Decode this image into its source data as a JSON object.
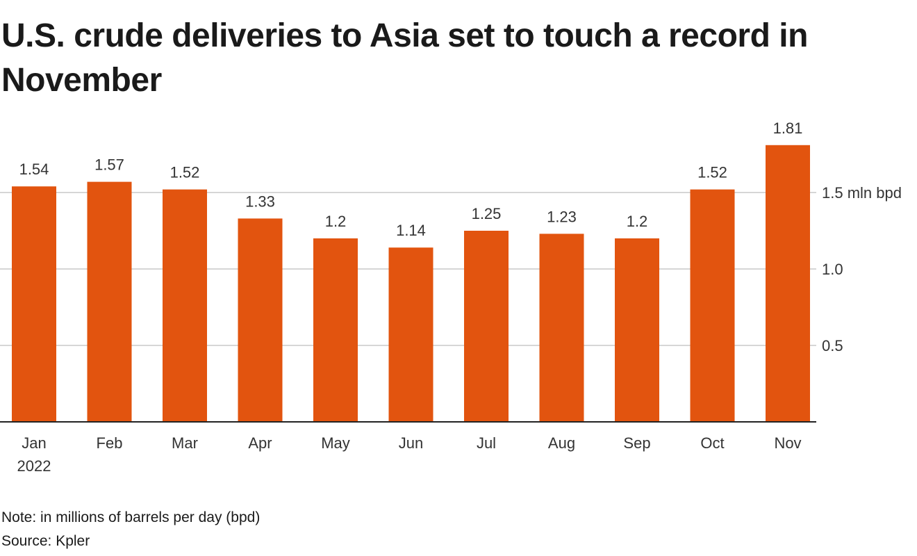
{
  "title": "U.S. crude deliveries to Asia set to touch a record in November",
  "note": "Note: in millions of barrels per day (bpd)",
  "source": "Source: Kpler",
  "colors": {
    "bar": "#e2540f",
    "grid": "#c8c8c8",
    "axis": "#222222",
    "text": "#333333"
  },
  "chart_data": {
    "type": "bar",
    "title": "U.S. crude deliveries to Asia set to touch a record in November",
    "categories": [
      "Jan",
      "Feb",
      "Mar",
      "Apr",
      "May",
      "Jun",
      "Jul",
      "Aug",
      "Sep",
      "Oct",
      "Nov"
    ],
    "category_sublabels": [
      "2022",
      "",
      "",
      "",
      "",
      "",
      "",
      "",
      "",
      "",
      ""
    ],
    "values": [
      1.54,
      1.57,
      1.52,
      1.33,
      1.2,
      1.14,
      1.25,
      1.23,
      1.2,
      1.52,
      1.81
    ],
    "value_labels": [
      "1.54",
      "1.57",
      "1.52",
      "1.33",
      "1.2",
      "1.14",
      "1.25",
      "1.23",
      "1.2",
      "1.52",
      "1.81"
    ],
    "y_ticks": [
      {
        "value": 0.5,
        "label": "0.5"
      },
      {
        "value": 1.0,
        "label": "1.0"
      },
      {
        "value": 1.5,
        "label": "1.5 mln bpd"
      }
    ],
    "ylim": [
      0,
      1.85
    ],
    "y_axis_position": "right",
    "grid": true,
    "xlabel": "",
    "ylabel": ""
  }
}
